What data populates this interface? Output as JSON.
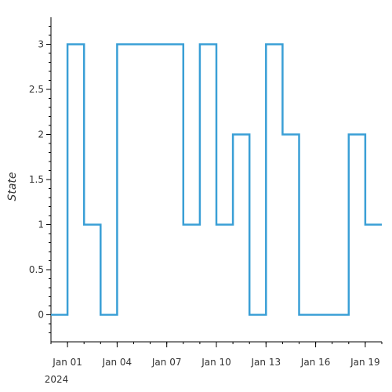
{
  "chart_data": {
    "type": "line",
    "step": "post",
    "ylabel": "State",
    "xlabel": "",
    "x_start": "2024-01-01",
    "xlim": [
      "2023-12-31",
      "2024-01-20"
    ],
    "ylim": [
      -0.3,
      3.3
    ],
    "yticks": [
      0,
      0.5,
      1,
      1.5,
      2,
      2.5,
      3
    ],
    "ytick_labels": [
      "0",
      "0.5",
      "1",
      "1.5",
      "2",
      "2.5",
      "3"
    ],
    "xticks": [
      "2024-01-01",
      "2024-01-04",
      "2024-01-07",
      "2024-01-10",
      "2024-01-13",
      "2024-01-16",
      "2024-01-19"
    ],
    "xtick_labels": [
      "Jan 01",
      "Jan 04",
      "Jan 07",
      "Jan 10",
      "Jan 13",
      "Jan 16",
      "Jan 19"
    ],
    "xtick_year_label": "2024",
    "series": [
      {
        "name": "",
        "color": "#3a9fd6",
        "x": [
          "2023-12-31",
          "2024-01-01",
          "2024-01-02",
          "2024-01-03",
          "2024-01-04",
          "2024-01-05",
          "2024-01-06",
          "2024-01-07",
          "2024-01-08",
          "2024-01-09",
          "2024-01-10",
          "2024-01-11",
          "2024-01-12",
          "2024-01-13",
          "2024-01-14",
          "2024-01-15",
          "2024-01-16",
          "2024-01-17",
          "2024-01-18",
          "2024-01-19"
        ],
        "values": [
          0,
          3,
          1,
          0,
          3,
          3,
          3,
          3,
          1,
          3,
          1,
          2,
          0,
          3,
          2,
          0,
          0,
          0,
          2,
          1
        ]
      }
    ],
    "grid": false
  }
}
